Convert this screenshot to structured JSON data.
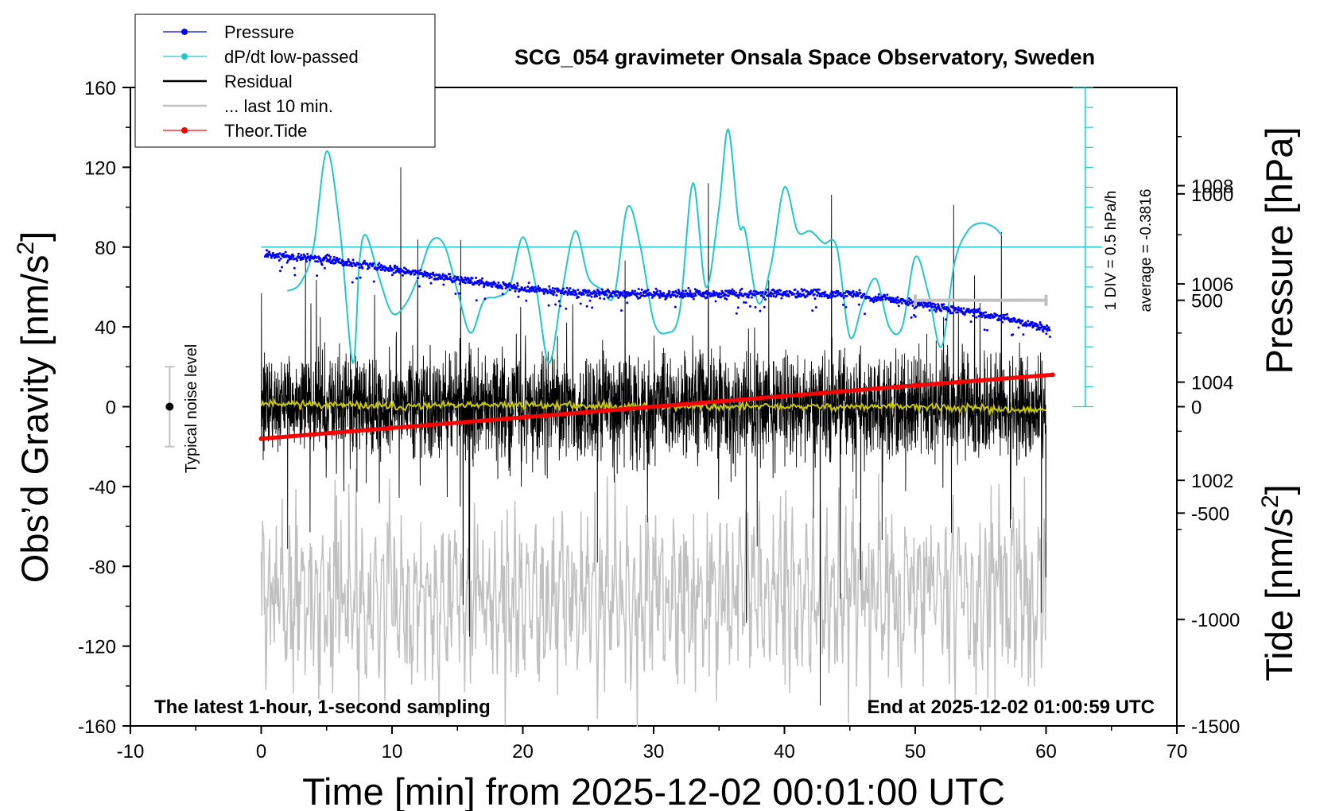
{
  "chart_data": {
    "type": "line",
    "title": "SCG_054 gravimeter Onsala Space Observatory, Sweden",
    "xlabel": "Time [min] from 2025-12-02 00:01:00 UTC",
    "ylabel_left": "Obs’d Gravity [nm/s",
    "ylabel_left_sup": "2",
    "ylabel_left_end": "]",
    "ylabel_pressure": "Pressure [hPa]",
    "ylabel_tide": "Tide [nm/s",
    "ylabel_tide_sup": "2",
    "ylabel_tide_end": "]",
    "xlim": [
      -10,
      70
    ],
    "ylim_gravity": [
      -160,
      160
    ],
    "ylim_pressure": [
      997,
      1010
    ],
    "ylim_tide": [
      -1500,
      1500
    ],
    "xticks": [
      "-10",
      "0",
      "10",
      "20",
      "30",
      "40",
      "50",
      "60",
      "70"
    ],
    "yticks_gravity": [
      "160",
      "120",
      "80",
      "40",
      "0",
      "-40",
      "-80",
      "-120",
      "-160"
    ],
    "yticks_pressure": [
      "1008",
      "1006",
      "1004",
      "1002"
    ],
    "yticks_tide": [
      "1000",
      "500",
      "0",
      "-500",
      "-1000",
      "-1500"
    ],
    "legend_position": "top-left",
    "legend": [
      {
        "label": "Pressure",
        "color": "#0000ff",
        "marker": "dot"
      },
      {
        "label": "dP/dt low-passed",
        "color": "#20c8c8",
        "marker": "dot"
      },
      {
        "label": "Residual",
        "color": "#000000",
        "marker": "none"
      },
      {
        "label": "... last 10 min.",
        "color": "#c0c0c0",
        "marker": "none"
      },
      {
        "label": "Theor.Tide",
        "color": "#ff0000",
        "marker": "dot"
      }
    ],
    "annotations": {
      "bottom_left": "The latest 1-hour, 1-second sampling",
      "bottom_right": "End at 2025-12-02 01:00:59 UTC",
      "noise_label": "Typical noise level",
      "dpdt_scale": "1 DIV = 0.5 hPa/h",
      "dpdt_average": "average = -0.3816"
    },
    "noise_bar": {
      "x": -7,
      "y": 0,
      "half_range": 20
    },
    "last10_bar": {
      "x_start": 50,
      "x_end": 60,
      "tide_value": 500
    },
    "dpdt_axis": {
      "x": 63,
      "baseline_gravity": 80,
      "top_gravity": 160,
      "bottom_gravity": 0
    },
    "series": [
      {
        "name": "Pressure",
        "unit": "hPa",
        "color": "#0000ff",
        "x": [
          0,
          5,
          10,
          15,
          20,
          25,
          30,
          35,
          40,
          45,
          50,
          55,
          60
        ],
        "values": [
          1006.6,
          1006.5,
          1006.3,
          1006.1,
          1005.9,
          1005.8,
          1005.8,
          1005.8,
          1005.8,
          1005.8,
          1005.6,
          1005.4,
          1005.1
        ]
      },
      {
        "name": "dP/dt low-passed",
        "unit": "nm/s2 scale",
        "color": "#20c8c8",
        "x": [
          2,
          3,
          4,
          5,
          6,
          7,
          7.5,
          8,
          9,
          10,
          11,
          12,
          13,
          14,
          15,
          16,
          17,
          18,
          19,
          20,
          21,
          22,
          23,
          24,
          25,
          26,
          27,
          28,
          29,
          30,
          31,
          32,
          33,
          34,
          35,
          35.7,
          36.5,
          37,
          38,
          39,
          40,
          41,
          42,
          43,
          44,
          45,
          46,
          47,
          48,
          49,
          50,
          51,
          52,
          53,
          54,
          55,
          56,
          56.6
        ],
        "values": [
          58,
          62,
          80,
          128,
          90,
          22,
          72,
          86,
          65,
          47,
          51,
          65,
          83,
          81,
          58,
          37,
          53,
          55,
          60,
          85,
          60,
          22,
          58,
          88,
          65,
          59,
          56,
          100,
          80,
          43,
          37,
          48,
          112,
          60,
          100,
          139,
          92,
          88,
          52,
          72,
          110,
          88,
          88,
          82,
          80,
          35,
          52,
          64,
          40,
          40,
          75,
          57,
          30,
          72,
          88,
          92,
          90,
          86
        ]
      },
      {
        "name": "Residual",
        "unit": "nm/s2",
        "color": "#000000",
        "x_range": [
          0,
          60
        ],
        "approx_mean": 0,
        "approx_amplitude": 40
      },
      {
        "name": "Smoothed residual",
        "unit": "nm/s2",
        "color": "#c8c800",
        "x": [
          0,
          10,
          20,
          30,
          40,
          50,
          60
        ],
        "values": [
          2,
          0,
          1,
          0,
          0,
          0,
          -2
        ]
      },
      {
        "name": "... last 10 min.",
        "unit": "nm/s2",
        "color": "#c0c0c0",
        "x_range": [
          0,
          60
        ],
        "approx_mean": -95,
        "approx_amplitude": 35
      },
      {
        "name": "Theor.Tide",
        "unit": "nm/s2",
        "color": "#ff0000",
        "x": [
          0,
          10,
          20,
          30,
          40,
          50,
          60.5
        ],
        "values": [
          -150,
          -100,
          -50,
          0,
          50,
          100,
          150
        ]
      }
    ]
  }
}
